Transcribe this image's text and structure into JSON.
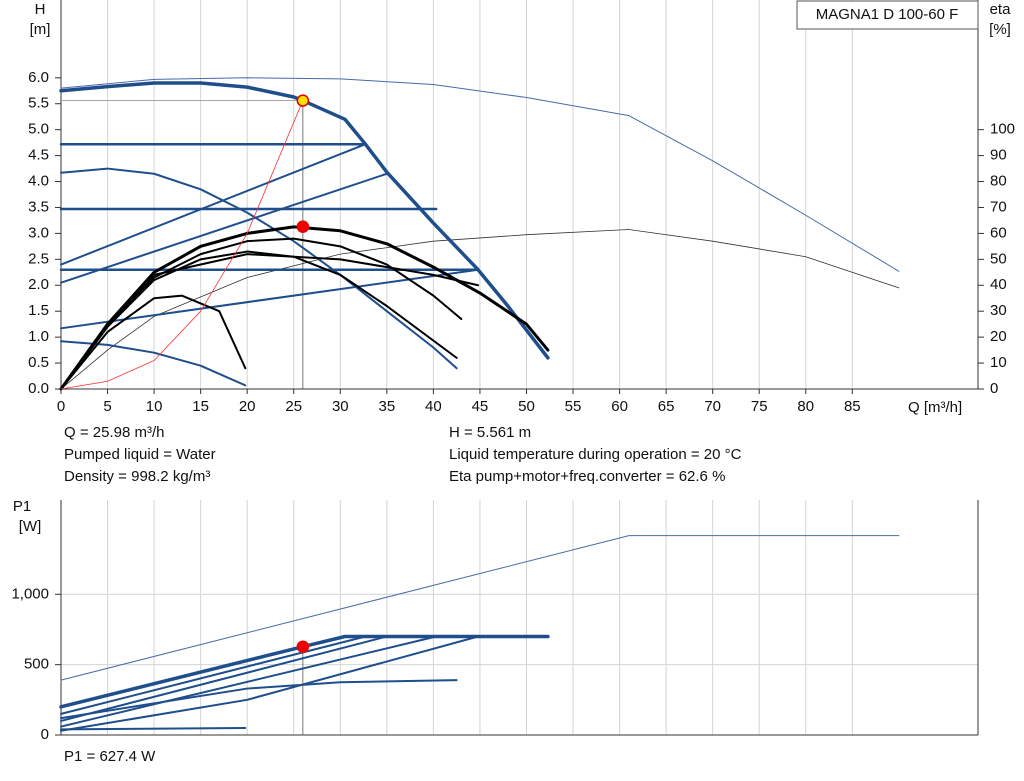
{
  "chart_data": [
    {
      "type": "line",
      "title": "MAGNA1 D 100-60 F",
      "ylabel": [
        "H",
        "[m]"
      ],
      "y2label": [
        "eta",
        "[%]"
      ],
      "xlabel": "Q [m³/h]",
      "xlim": [
        0,
        98.5
      ],
      "ylim": [
        0,
        7.5
      ],
      "y2lim": [
        0,
        150
      ],
      "xticks": [
        0,
        5,
        10,
        15,
        20,
        25,
        30,
        35,
        40,
        45,
        50,
        55,
        60,
        65,
        70,
        75,
        80,
        85
      ],
      "yticks": [
        {
          "value": 0,
          "label": "0.0"
        },
        0.5,
        {
          "value": 1,
          "label": "1.0"
        },
        1.5,
        {
          "value": 2,
          "label": "2.0"
        },
        2.5,
        {
          "value": 3,
          "label": "3.0"
        },
        3.5,
        {
          "value": 4,
          "label": "4.0"
        },
        4.5,
        {
          "value": 5,
          "label": "5.0"
        },
        5.5,
        {
          "value": 6,
          "label": "6.0"
        }
      ],
      "y2ticks": [
        0,
        10,
        20,
        30,
        40,
        50,
        60,
        70,
        80,
        90,
        100
      ],
      "grid": true,
      "series": [
        {
          "color": "#4a6aa8",
          "width": 1,
          "x": [
            0,
            10,
            20,
            30,
            40,
            50,
            61,
            70,
            80,
            90
          ],
          "values": [
            5.8,
            5.97,
            6.0,
            5.98,
            5.87,
            5.62,
            5.27,
            4.4,
            3.35,
            2.27
          ]
        },
        {
          "color": "#333333",
          "width": 0.8,
          "axis": "y2",
          "x": [
            0,
            5,
            10,
            20,
            30,
            40,
            50,
            61,
            70,
            80,
            90
          ],
          "values": [
            0,
            15,
            28,
            43,
            52,
            57,
            59.5,
            61.5,
            57,
            51,
            39
          ]
        },
        {
          "color": "#1f4e8c",
          "width": 2.5,
          "x": [
            0,
            32.7
          ],
          "values": [
            4.72,
            4.72
          ]
        },
        {
          "color": "#1f4e8c",
          "width": 2.5,
          "x": [
            0,
            40.3
          ],
          "values": [
            3.47,
            3.47
          ]
        },
        {
          "color": "#1f4e8c",
          "width": 2.5,
          "x": [
            0,
            44.8
          ],
          "values": [
            2.3,
            2.3
          ]
        },
        {
          "color": "#1f4e8c",
          "width": 2,
          "x": [
            0,
            44.8
          ],
          "values": [
            1.17,
            2.3
          ]
        },
        {
          "color": "#1f4e8c",
          "width": 2,
          "x": [
            0,
            35
          ],
          "values": [
            2.05,
            4.15
          ]
        },
        {
          "color": "#1f4e8c",
          "width": 2,
          "x": [
            0,
            32.7
          ],
          "values": [
            2.4,
            4.72
          ]
        },
        {
          "color": "#1f4e8c",
          "width": 2,
          "x": [
            0,
            5,
            10,
            15,
            19.8
          ],
          "values": [
            0.92,
            0.85,
            0.7,
            0.45,
            0.07
          ]
        },
        {
          "color": "#1f4e8c",
          "width": 2,
          "x": [
            0,
            5,
            10,
            15,
            20,
            25,
            30,
            35,
            40,
            42.5
          ],
          "values": [
            4.17,
            4.25,
            4.15,
            3.85,
            3.4,
            2.85,
            2.2,
            1.5,
            0.8,
            0.4
          ]
        },
        {
          "color": "#1f4e8c",
          "width": 3.5,
          "x": [
            0,
            5,
            10,
            15,
            20,
            25,
            25.98,
            30.5,
            32.7,
            35,
            40,
            44.8,
            48,
            52.3
          ],
          "values": [
            5.75,
            5.83,
            5.9,
            5.9,
            5.82,
            5.63,
            5.561,
            5.2,
            4.72,
            4.18,
            3.2,
            2.3,
            1.6,
            0.6
          ]
        },
        {
          "color": "#000000",
          "width": 3,
          "axis": "y2",
          "x": [
            0,
            5,
            10,
            15,
            20,
            25,
            30,
            35,
            40,
            45,
            50,
            52.3
          ],
          "values": [
            0,
            25,
            45,
            55,
            60,
            62.5,
            61,
            56,
            47,
            37,
            25,
            15
          ]
        },
        {
          "color": "#000000",
          "width": 2,
          "axis": "y2",
          "x": [
            0,
            5,
            10,
            15,
            20,
            25,
            30,
            35,
            40,
            43
          ],
          "values": [
            0,
            24,
            43,
            52,
            57,
            58,
            55,
            48,
            36,
            27
          ]
        },
        {
          "color": "#000000",
          "width": 2,
          "axis": "y2",
          "x": [
            0,
            5,
            10,
            15,
            20,
            25,
            30,
            35,
            42.5
          ],
          "values": [
            0,
            24,
            42,
            50,
            53,
            51,
            44,
            32,
            12
          ]
        },
        {
          "color": "#000000",
          "width": 2,
          "axis": "y2",
          "x": [
            0,
            5,
            10,
            20,
            30,
            40,
            44.8
          ],
          "values": [
            0,
            25,
            44,
            52,
            50,
            44,
            40
          ]
        },
        {
          "color": "#000000",
          "width": 2,
          "axis": "y2",
          "x": [
            0,
            5,
            10,
            13,
            17,
            19.8
          ],
          "values": [
            0,
            22,
            35,
            36,
            30,
            8
          ]
        },
        {
          "color": "#ff3030",
          "width": 0.8,
          "x": [
            0,
            5,
            10,
            15,
            20,
            25.98
          ],
          "values": [
            0,
            0.15,
            0.55,
            1.5,
            3.0,
            5.561
          ]
        }
      ],
      "markers": [
        {
          "color": "#ffe000",
          "x": 25.98,
          "value": 5.561
        },
        {
          "color": "#ee0000",
          "axis": "y2",
          "x": 25.98,
          "value": 62.6
        }
      ],
      "annotations": [
        "Q = 25.98 m³/h",
        "Pumped liquid = Water",
        "Density = 998.2 kg/m³",
        "H = 5.561 m",
        "Liquid temperature during operation = 20 °C",
        "Eta pump+motor+freq.converter = 62.6 %"
      ]
    },
    {
      "type": "line",
      "ylabel": [
        "P1",
        "[W]"
      ],
      "ylim": [
        0,
        1670
      ],
      "yticks": [
        0,
        500,
        {
          "value": 1000,
          "label": "1,000"
        }
      ],
      "grid": true,
      "series": [
        {
          "color": "#4a6aa8",
          "width": 1,
          "x": [
            0,
            61,
            90
          ],
          "values": [
            390,
            1417,
            1417
          ]
        },
        {
          "color": "#1f4e8c",
          "width": 2,
          "x": [
            0,
            32.7,
            52.3
          ],
          "values": [
            150,
            700,
            700
          ]
        },
        {
          "color": "#1f4e8c",
          "width": 2,
          "x": [
            0,
            35
          ],
          "values": [
            100,
            700
          ]
        },
        {
          "color": "#1f4e8c",
          "width": 2,
          "x": [
            0,
            40.3
          ],
          "values": [
            60,
            700
          ]
        },
        {
          "color": "#1f4e8c",
          "width": 2,
          "x": [
            0,
            20,
            44.8
          ],
          "values": [
            30,
            250,
            700
          ]
        },
        {
          "color": "#1f4e8c",
          "width": 2,
          "x": [
            0,
            20,
            30,
            42.5
          ],
          "values": [
            120,
            330,
            375,
            390
          ]
        },
        {
          "color": "#1f4e8c",
          "width": 2,
          "x": [
            0,
            19.8
          ],
          "values": [
            40,
            50
          ]
        },
        {
          "color": "#1f4e8c",
          "width": 3.5,
          "x": [
            0,
            25.98,
            30.5,
            52.3
          ],
          "values": [
            200,
            627.4,
            700,
            700
          ]
        }
      ],
      "markers": [
        {
          "color": "#ee0000",
          "x": 25.98,
          "value": 627.4
        }
      ],
      "annotations": [
        "P1 = 627.4 W"
      ]
    }
  ]
}
